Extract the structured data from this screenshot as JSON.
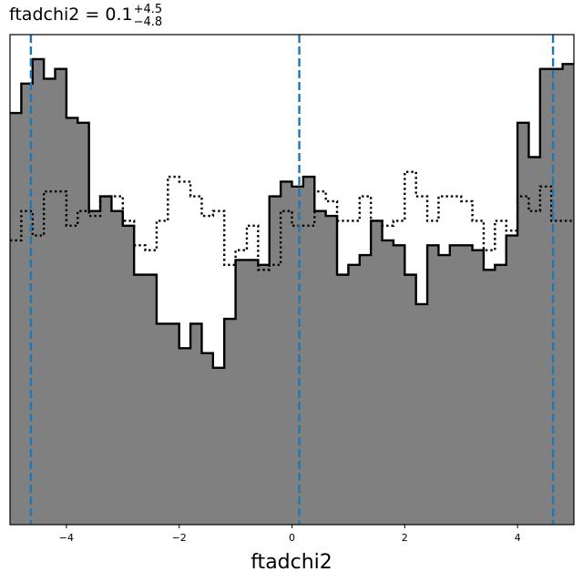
{
  "chart_data": {
    "type": "histogram",
    "title": {
      "main": "ftadchi2 = 0.1",
      "upper": "+4.5",
      "lower": "−4.8"
    },
    "xlabel": "ftadchi2",
    "ylabel": "",
    "xlim": [
      -5,
      5
    ],
    "ylim": [
      0,
      1.0
    ],
    "x_ticks": [
      -4,
      -2,
      0,
      2,
      4
    ],
    "x_tick_labels": [
      "−4",
      "−2",
      "0",
      "2",
      "4"
    ],
    "y_ticks_shown": false,
    "bins": {
      "start": -5.0,
      "width": 0.2,
      "count": 50
    },
    "series": [
      {
        "style": "filled-step",
        "fill": "#808080",
        "edge": "#000000",
        "values": [
          0.84,
          0.9,
          0.95,
          0.91,
          0.93,
          0.83,
          0.82,
          0.64,
          0.67,
          0.64,
          0.61,
          0.51,
          0.51,
          0.41,
          0.41,
          0.36,
          0.41,
          0.35,
          0.32,
          0.42,
          0.54,
          0.54,
          0.53,
          0.67,
          0.7,
          0.69,
          0.71,
          0.64,
          0.63,
          0.51,
          0.53,
          0.55,
          0.62,
          0.58,
          0.57,
          0.51,
          0.45,
          0.57,
          0.55,
          0.57,
          0.57,
          0.56,
          0.52,
          0.53,
          0.59,
          0.82,
          0.75,
          0.93,
          0.93,
          0.94
        ]
      },
      {
        "style": "dotted-step",
        "color": "#000000",
        "values": [
          0.58,
          0.64,
          0.59,
          0.68,
          0.68,
          0.61,
          0.64,
          0.63,
          0.67,
          0.67,
          0.62,
          0.57,
          0.56,
          0.62,
          0.71,
          0.7,
          0.67,
          0.63,
          0.64,
          0.53,
          0.56,
          0.61,
          0.52,
          0.53,
          0.64,
          0.61,
          0.61,
          0.68,
          0.66,
          0.62,
          0.62,
          0.67,
          0.62,
          0.61,
          0.62,
          0.72,
          0.67,
          0.62,
          0.67,
          0.67,
          0.66,
          0.62,
          0.56,
          0.62,
          0.6,
          0.67,
          0.64,
          0.69,
          0.62,
          0.62
        ]
      }
    ],
    "vlines": {
      "color": "#1f77b4",
      "style": "dashed",
      "x": [
        -4.63,
        0.13,
        4.63
      ]
    }
  }
}
